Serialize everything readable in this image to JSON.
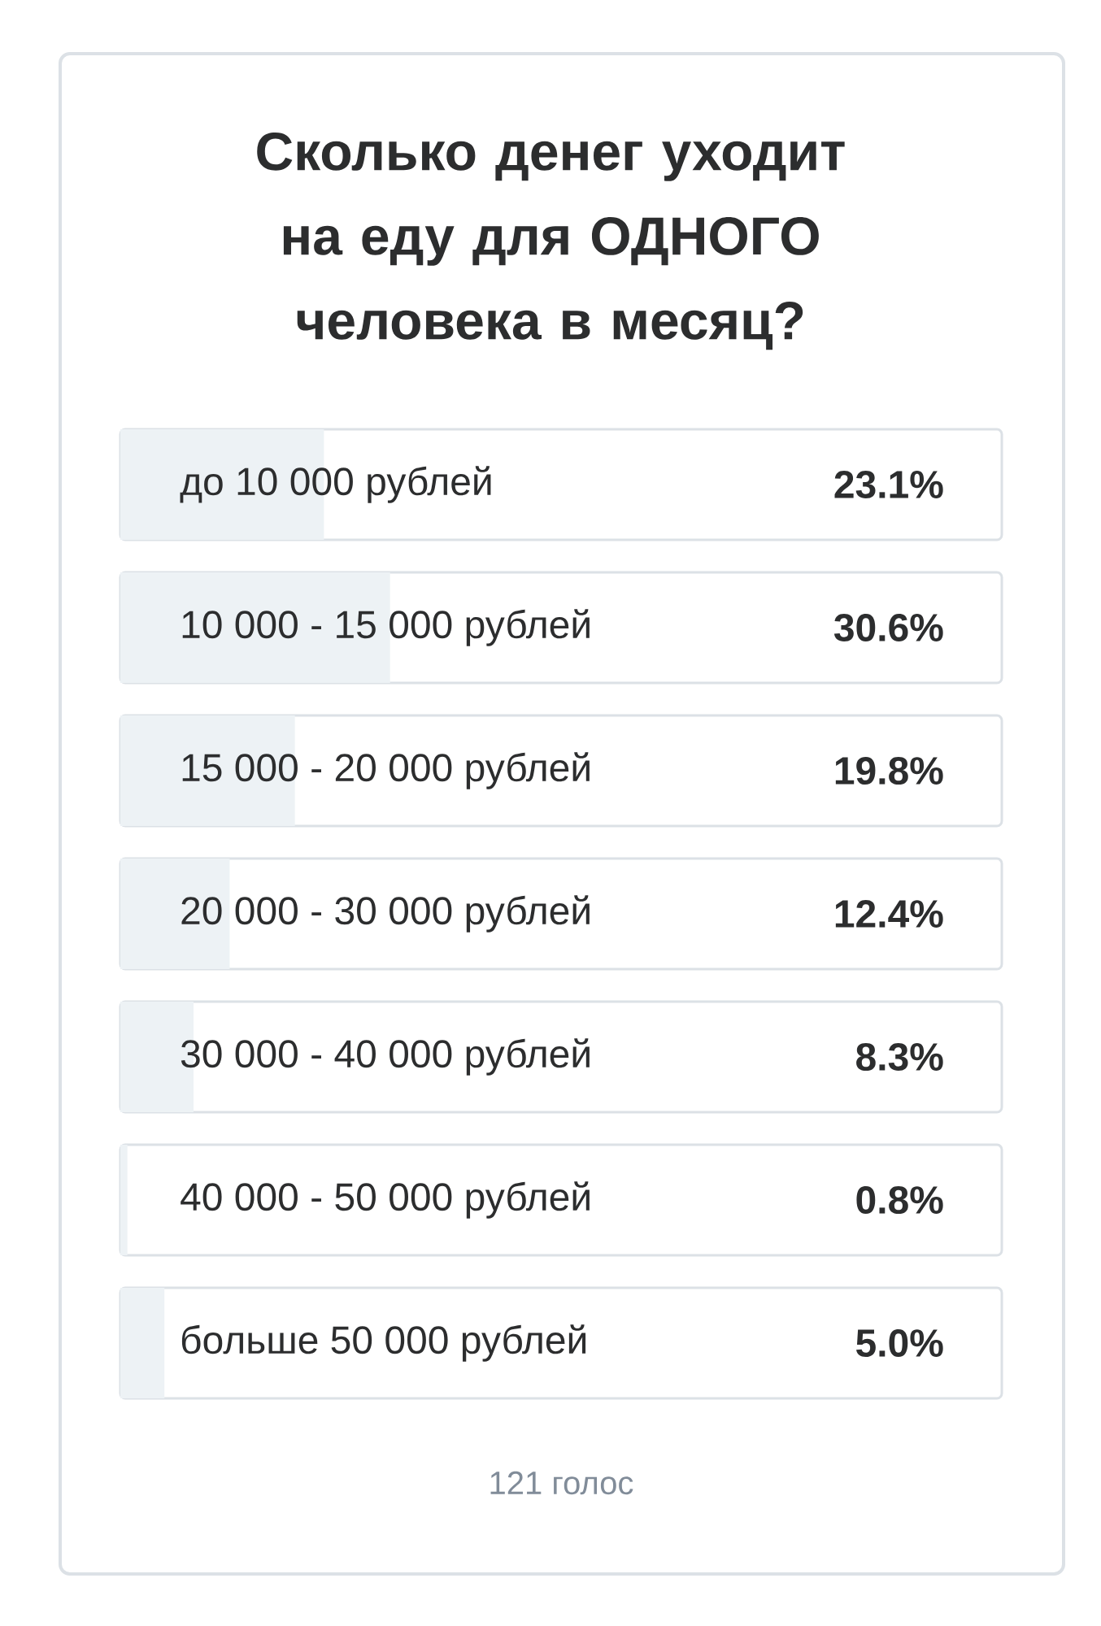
{
  "chart_data": {
    "type": "bar",
    "orientation": "horizontal",
    "title": "Сколько денег уходит на еду для ОДНОГО человека в месяц?",
    "categories": [
      "до 10 000 рублей",
      "10 000 - 15 000 рублей",
      "15 000 - 20 000 рублей",
      "20 000 - 30 000 рублей",
      "30 000 - 40 000 рублей",
      "40 000 - 50 000 рублей",
      "больше 50 000 рублей"
    ],
    "values": [
      23.1,
      30.6,
      19.8,
      12.4,
      8.3,
      0.8,
      5.0
    ],
    "value_labels": [
      "23.1%",
      "30.6%",
      "19.8%",
      "12.4%",
      "8.3%",
      "0.8%",
      "5.0%"
    ],
    "color": "#edf2f5",
    "xlim": [
      0,
      100
    ],
    "annotations": [
      "121 голос"
    ]
  }
}
